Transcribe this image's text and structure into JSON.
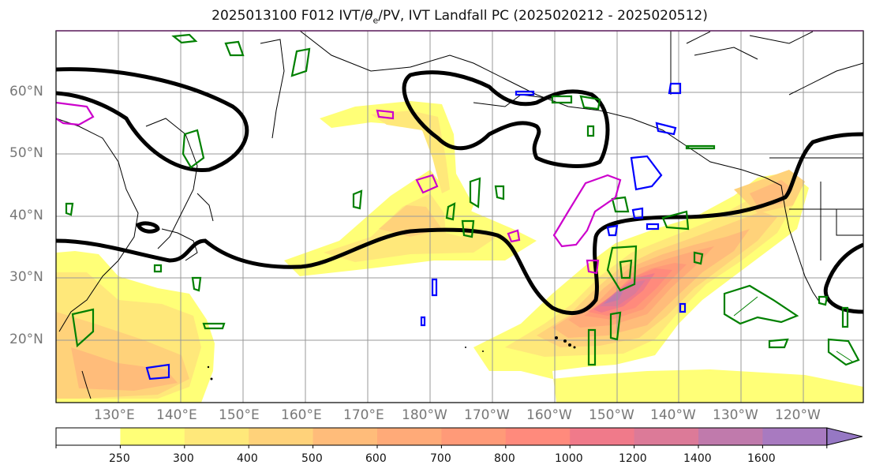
{
  "title": {
    "prefix": "2025013100 F012 IVT/",
    "theta": "θ",
    "sub": "e",
    "suffix": "/PV, IVT Landfall PC (2025020212 - 2025020512)"
  },
  "map": {
    "lat_labels": [
      "60°N",
      "50°N",
      "40°N",
      "30°N",
      "20°N"
    ],
    "lon_labels": [
      "130°E",
      "140°E",
      "150°E",
      "160°E",
      "170°E",
      "180°W",
      "170°W",
      "160°W",
      "150°W",
      "140°W",
      "130°W",
      "120°W"
    ],
    "extent": {
      "lon_min": 120,
      "lon_max": 250,
      "lat_min": 10,
      "lat_max": 70
    },
    "contour_colors": {
      "theta_e": "#000000",
      "pv_positive": "#008000",
      "pv_negative": "#0000ff",
      "landfall": "#cc00cc"
    }
  },
  "colorbar": {
    "levels": [
      "250",
      "300",
      "400",
      "500",
      "600",
      "700",
      "800",
      "1000",
      "1200",
      "1400",
      "1600"
    ],
    "colors": [
      "#ffffff",
      "#ffff77",
      "#ffe87a",
      "#ffd27a",
      "#ffbc7a",
      "#ffaa78",
      "#ff9a78",
      "#ff8a7c",
      "#f07a8a",
      "#dc7a98",
      "#c07aac",
      "#a87ac0",
      "#9678c4"
    ],
    "extend": "max"
  }
}
